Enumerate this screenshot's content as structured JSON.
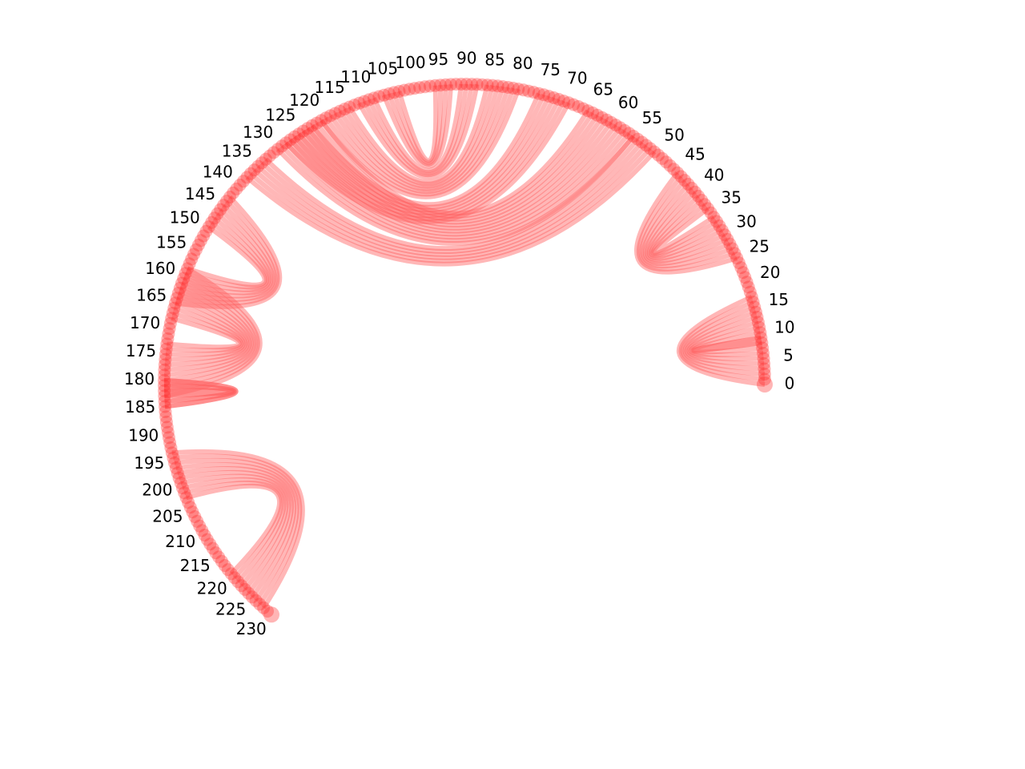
{
  "diagram": {
    "type": "arc-diagram-circular",
    "node_count": 232,
    "node_color": "#ff2a2a",
    "link_color": "#ff6060",
    "tick_labels": [
      "0",
      "5",
      "10",
      "15",
      "20",
      "25",
      "30",
      "35",
      "40",
      "45",
      "50",
      "55",
      "60",
      "65",
      "70",
      "75",
      "80",
      "85",
      "90",
      "95",
      "100",
      "105",
      "110",
      "115",
      "120",
      "125",
      "130",
      "135",
      "140",
      "145",
      "150",
      "155",
      "160",
      "165",
      "170",
      "175",
      "180",
      "185",
      "190",
      "195",
      "200",
      "205",
      "210",
      "215",
      "220",
      "225",
      "230"
    ],
    "tick_values": [
      0,
      5,
      10,
      15,
      20,
      25,
      30,
      35,
      40,
      45,
      50,
      55,
      60,
      65,
      70,
      75,
      80,
      85,
      90,
      95,
      100,
      105,
      110,
      115,
      120,
      125,
      130,
      135,
      140,
      145,
      150,
      155,
      160,
      165,
      170,
      175,
      180,
      185,
      190,
      195,
      200,
      205,
      210,
      215,
      220,
      225,
      230
    ],
    "link_bundles": [
      {
        "source_range": [
          0,
          9
        ],
        "target_range": [
          17,
          8
        ]
      },
      {
        "source_range": [
          25,
          34
        ],
        "target_range": [
          45,
          36
        ]
      },
      {
        "source_range": [
          51,
          56
        ],
        "target_range": [
          137,
          132
        ]
      },
      {
        "source_range": [
          56,
          66
        ],
        "target_range": [
          129,
          119
        ]
      },
      {
        "source_range": [
          70,
          76
        ],
        "target_range": [
          127,
          121
        ]
      },
      {
        "source_range": [
          80,
          86
        ],
        "target_range": [
          119,
          113
        ]
      },
      {
        "source_range": [
          88,
          91
        ],
        "target_range": [
          111,
          108
        ]
      },
      {
        "source_range": [
          93,
          96
        ],
        "target_range": [
          106,
          103
        ]
      },
      {
        "source_range": [
          142,
          149
        ],
        "target_range": [
          165,
          158
        ]
      },
      {
        "source_range": [
          158,
          168
        ],
        "target_range": [
          183,
          173
        ]
      },
      {
        "source_range": [
          180,
          185
        ],
        "target_range": [
          185,
          180
        ]
      },
      {
        "source_range": [
          194,
          203
        ],
        "target_range": [
          229,
          220
        ]
      }
    ]
  }
}
